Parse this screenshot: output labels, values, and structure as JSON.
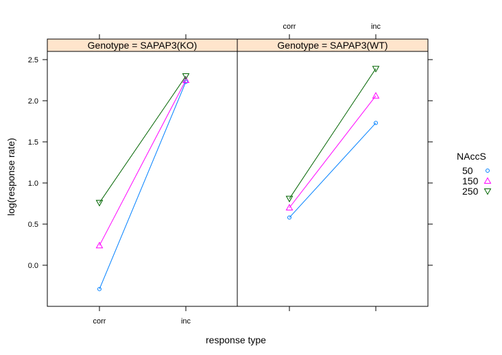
{
  "chart_data": {
    "type": "line",
    "xlabel": "response type",
    "ylabel": "log(response rate)",
    "categories": [
      "corr",
      "inc"
    ],
    "ylim": [
      -0.5,
      2.6
    ],
    "yticks": [
      0.0,
      0.5,
      1.0,
      1.5,
      2.0,
      2.5
    ],
    "ytick_labels": [
      "0.0",
      "0.5",
      "1.0",
      "1.5",
      "2.0",
      "2.5"
    ],
    "grid": false,
    "legend": {
      "title": "NAccS",
      "placement": "right",
      "entries": [
        {
          "label": "50",
          "color": "#0080ff",
          "marker": "circle"
        },
        {
          "label": "150",
          "color": "#ff00ff",
          "marker": "triangle-up"
        },
        {
          "label": "250",
          "color": "#006400",
          "marker": "triangle-down"
        }
      ]
    },
    "panels": [
      {
        "strip": "Genotype = SAPAP3(KO)",
        "series": [
          {
            "name": "50",
            "values": [
              -0.29,
              2.23
            ]
          },
          {
            "name": "150",
            "values": [
              0.24,
              2.25
            ]
          },
          {
            "name": "250",
            "values": [
              0.76,
              2.3
            ]
          }
        ]
      },
      {
        "strip": "Genotype = SAPAP3(WT)",
        "series": [
          {
            "name": "50",
            "values": [
              0.58,
              1.73
            ]
          },
          {
            "name": "150",
            "values": [
              0.7,
              2.06
            ]
          },
          {
            "name": "250",
            "values": [
              0.81,
              2.39
            ]
          }
        ]
      }
    ],
    "colors": {
      "strip_bg": "#ffe5cc",
      "axis": "#000000"
    }
  }
}
